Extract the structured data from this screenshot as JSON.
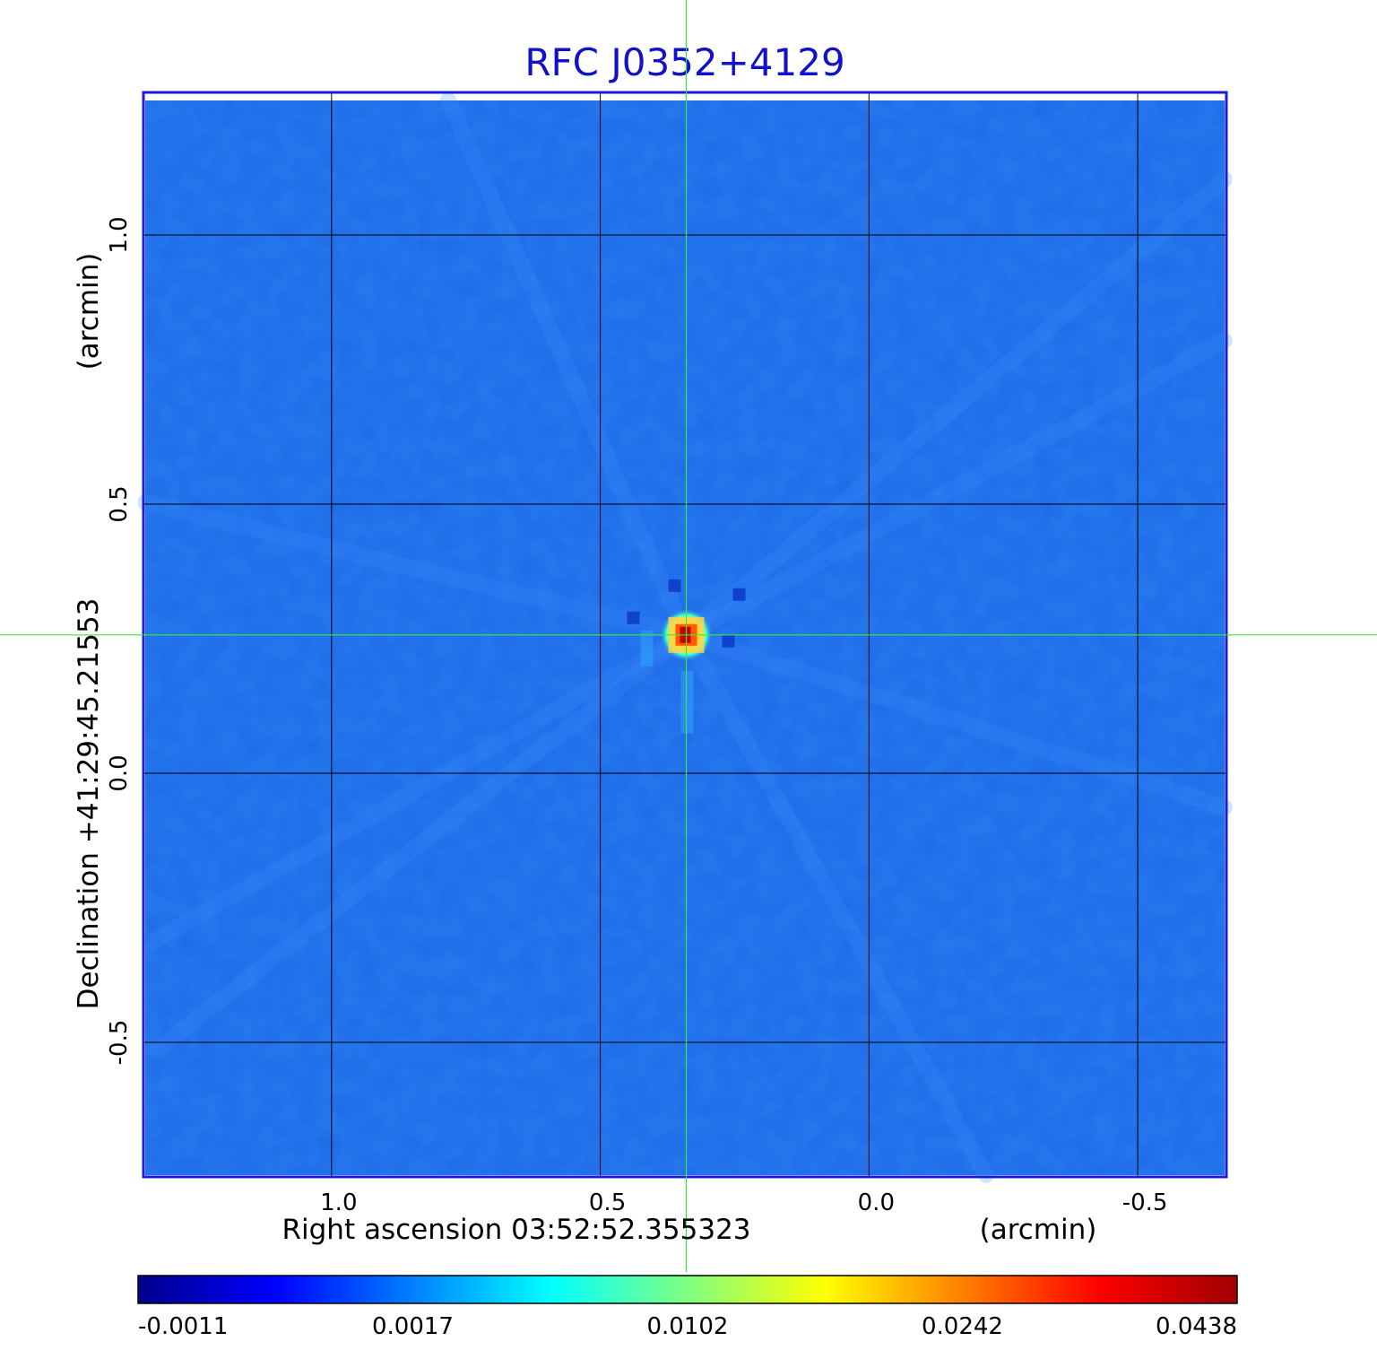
{
  "chart_data": {
    "type": "heatmap",
    "title": "RFC J0352+4129",
    "xlabel": "Right ascension  03:52:52.355323",
    "xlabel_unit": "(arcmin)",
    "ylabel": "Declination  +41:29:45.21553",
    "ylabel_unit": "(arcmin)",
    "x_ticks": [
      1.0,
      0.5,
      0.0,
      -0.5
    ],
    "x_tick_labels": [
      "1.0",
      "0.5",
      "0.0",
      "-0.5"
    ],
    "y_ticks": [
      1.0,
      0.5,
      0.0,
      -0.5
    ],
    "y_tick_labels": [
      "1.0",
      "0.5",
      "0.0",
      "-0.5"
    ],
    "xlim": [
      1.35,
      -0.665
    ],
    "ylim": [
      -0.75,
      1.265
    ],
    "grid": true,
    "crosshair": {
      "x": 0.34,
      "y": 0.257
    },
    "source_peak": {
      "x": 0.34,
      "y": 0.257,
      "value": 0.0438
    },
    "colorbar": {
      "tick_labels": [
        "-0.0011",
        "0.0017",
        "0.0102",
        "0.0242",
        "0.0438"
      ],
      "colormap": "jet",
      "colors": [
        "#00008c",
        "#0000ff",
        "#0080ff",
        "#00ffff",
        "#80ff80",
        "#ffff00",
        "#ff8000",
        "#ff0000",
        "#a00000"
      ]
    },
    "colors": {
      "title": "#1111cc",
      "frame": "#1a1adb",
      "background_field": "#1e6ae8",
      "crosshair": "#33ee33",
      "grid": "#000000"
    }
  }
}
